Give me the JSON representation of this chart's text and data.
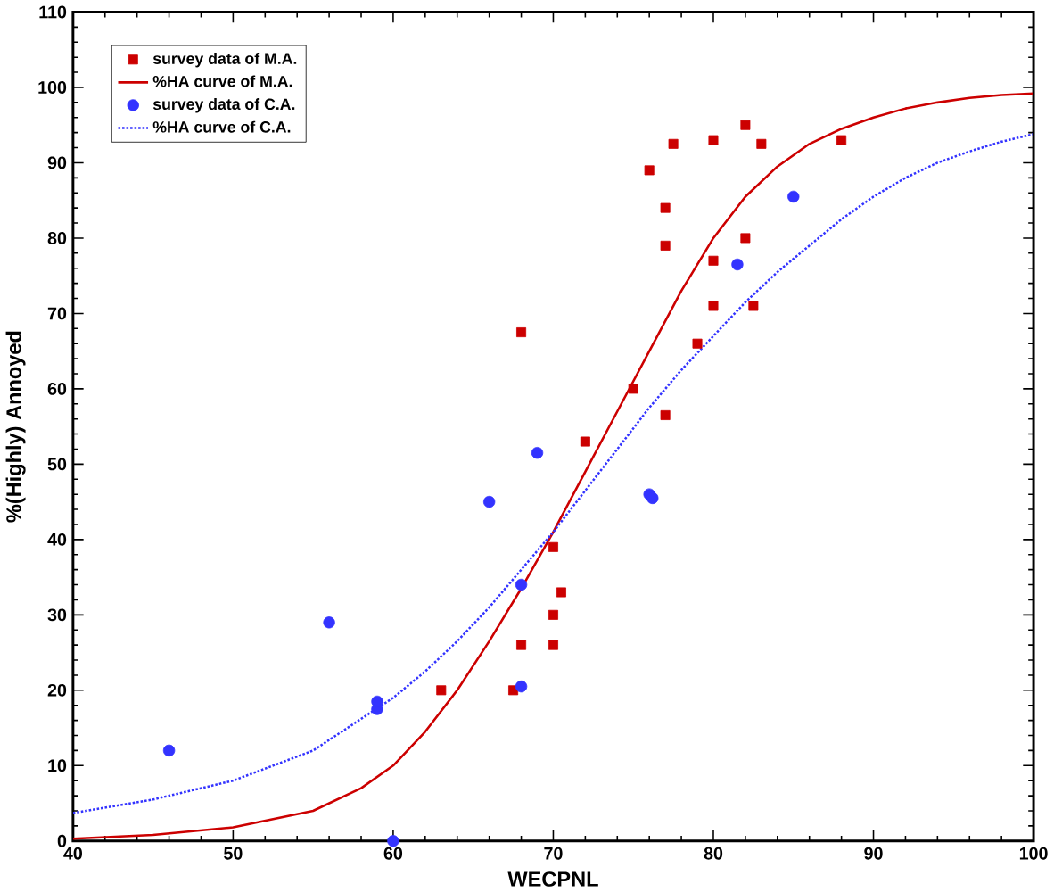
{
  "chart_data": {
    "type": "scatter",
    "xlabel": "WECPNL",
    "ylabel": "%(Highly) Annoyed",
    "xlim": [
      40,
      100
    ],
    "ylim": [
      0,
      110
    ],
    "xticks": [
      40,
      50,
      60,
      70,
      80,
      90,
      100
    ],
    "yticks": [
      0,
      10,
      20,
      30,
      40,
      50,
      60,
      70,
      80,
      90,
      100,
      110
    ],
    "grid": false,
    "legend": "top left",
    "series": [
      {
        "name": "survey data of M.A.",
        "marker": "square",
        "color": "#cc0000",
        "x": [
          63,
          67.5,
          68,
          68,
          70,
          70,
          70.5,
          70,
          72,
          75,
          76,
          77,
          77,
          77,
          77.5,
          79,
          80,
          80,
          80,
          82,
          82,
          82.5,
          83,
          88
        ],
        "values": [
          20,
          20,
          26,
          67.5,
          30,
          26,
          33,
          39,
          53,
          60,
          89,
          79,
          84,
          56.5,
          92.5,
          66,
          93,
          77,
          71,
          95,
          80,
          71,
          92.5,
          93
        ]
      },
      {
        "name": "%HA curve of M.A.",
        "type": "line",
        "marker": "none",
        "line_style": "solid",
        "color": "#cc0000",
        "x": [
          40,
          45,
          50,
          55,
          58,
          60,
          62,
          64,
          66,
          68,
          70,
          72,
          74,
          76,
          78,
          80,
          82,
          84,
          86,
          88,
          90,
          92,
          94,
          96,
          98,
          100
        ],
        "values": [
          0.3,
          0.8,
          1.8,
          4,
          7,
          10,
          14.5,
          20,
          26.5,
          33.5,
          41,
          49,
          57,
          65,
          73,
          80,
          85.5,
          89.5,
          92.5,
          94.5,
          96,
          97.2,
          98,
          98.6,
          99,
          99.2
        ]
      },
      {
        "name": "survey data of C.A.",
        "marker": "circle",
        "color": "#3333ff",
        "x": [
          46,
          56,
          59,
          59,
          60,
          66,
          68,
          68,
          69,
          76,
          76.2,
          81.5,
          85
        ],
        "values": [
          12,
          29,
          17.5,
          18.5,
          0,
          45,
          20.5,
          34,
          51.5,
          46,
          45.5,
          76.5,
          85.5
        ]
      },
      {
        "name": "%HA curve of C.A.",
        "type": "line",
        "marker": "none",
        "line_style": "dotted",
        "color": "#3333ff",
        "x": [
          40,
          45,
          50,
          55,
          60,
          62,
          64,
          66,
          68,
          70,
          72,
          74,
          76,
          78,
          80,
          82,
          84,
          86,
          88,
          90,
          92,
          94,
          96,
          98,
          100
        ],
        "values": [
          3.7,
          5.5,
          8,
          12,
          19,
          22.5,
          26.5,
          31,
          36,
          41,
          46.5,
          52,
          57.5,
          62.5,
          67,
          71.5,
          75.5,
          79,
          82.5,
          85.5,
          88,
          90,
          91.5,
          92.8,
          93.8
        ]
      }
    ]
  }
}
